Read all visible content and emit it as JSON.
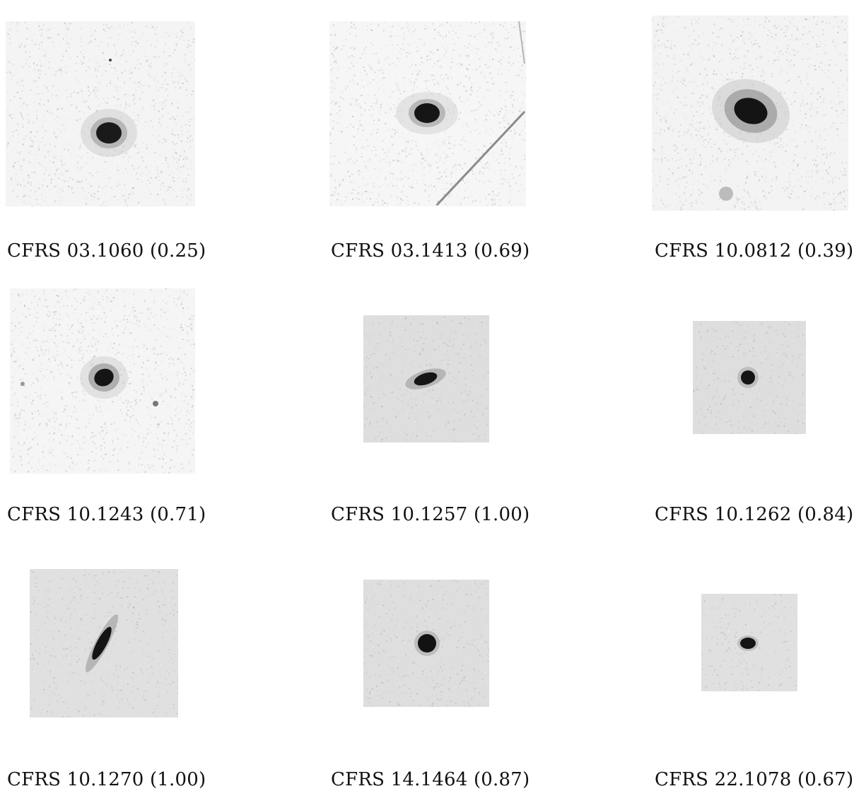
{
  "figure": {
    "panels": [
      {
        "caption": "CFRS 03.1060 (0.25)",
        "morphology": "round-compact",
        "stretch": "soft"
      },
      {
        "caption": "CFRS 03.1413 (0.69)",
        "morphology": "round-compact",
        "stretch": "soft",
        "artifact": "diagonal-streak"
      },
      {
        "caption": "CFRS 10.0812 (0.39)",
        "morphology": "extended-elliptical",
        "stretch": "soft",
        "companion": "faint-blob-below"
      },
      {
        "caption": "CFRS 10.1243 (0.71)",
        "morphology": "round-compact",
        "stretch": "soft"
      },
      {
        "caption": "CFRS 10.1257 (1.00)",
        "morphology": "elongated-tilted",
        "stretch": "hard"
      },
      {
        "caption": "CFRS 10.1262 (0.84)",
        "morphology": "point-like",
        "stretch": "hard"
      },
      {
        "caption": "CFRS 10.1270 (1.00)",
        "morphology": "edge-on-diagonal",
        "stretch": "hard"
      },
      {
        "caption": "CFRS 14.1464 (0.87)",
        "morphology": "point-like",
        "stretch": "hard"
      },
      {
        "caption": "CFRS 22.1078 (0.67)",
        "morphology": "point-like-small",
        "stretch": "hard"
      }
    ]
  }
}
